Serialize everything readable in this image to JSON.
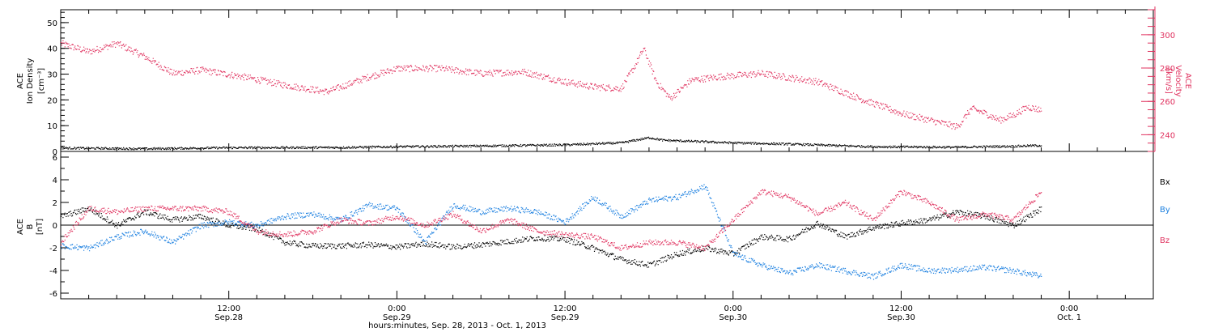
{
  "chart_data": [
    {
      "type": "scatter",
      "panel": "plasma",
      "ylabel_left": [
        "ACE",
        "Ion Density",
        "[cm⁻³]"
      ],
      "ylabel_right": [
        "ACE",
        "Velocity",
        "[km/s]"
      ],
      "ylim_left": [
        0,
        55
      ],
      "ylim_right": [
        230,
        315
      ],
      "left_ticks": [
        "0",
        "10",
        "20",
        "30",
        "40",
        "50"
      ],
      "right_ticks": [
        "240",
        "260",
        "280",
        "300"
      ],
      "colors": {
        "density": "#000000",
        "velocity": "#e0325f"
      },
      "series": [
        {
          "axis": "left",
          "hours": [
            0,
            6,
            12,
            20,
            24,
            30,
            36,
            40,
            42,
            43,
            48,
            52,
            58,
            64,
            68,
            70
          ],
          "values": [
            1.5,
            1.2,
            1.6,
            1.7,
            2.0,
            2.3,
            2.7,
            3.5,
            5.5,
            4.5,
            3.5,
            3.0,
            2.0,
            1.8,
            2.2,
            2.5
          ]
        },
        {
          "axis": "right",
          "hours": [
            0,
            2,
            4,
            6,
            8,
            10,
            13,
            16,
            19,
            22,
            24,
            27,
            30,
            33,
            36,
            38,
            40,
            41,
            41.6,
            42.5,
            43.5,
            45,
            47,
            50,
            54,
            57,
            60,
            62,
            64,
            65,
            66,
            67,
            68,
            69,
            70
          ],
          "values": [
            295,
            290,
            295,
            287,
            277,
            279,
            275,
            270,
            266,
            275,
            280,
            280,
            277,
            278,
            272,
            269,
            268,
            282,
            292,
            272,
            262,
            273,
            275,
            277,
            272,
            262,
            253,
            249,
            245,
            256,
            253,
            249,
            252,
            257,
            255
          ]
        }
      ]
    },
    {
      "type": "scatter",
      "panel": "magnetic-field",
      "ylabel_left": [
        "ACE",
        "B",
        "[nT]"
      ],
      "ylim": [
        -6.5,
        6.5
      ],
      "left_ticks": [
        "-6",
        "-4",
        "-2",
        "0",
        "2",
        "4",
        "6"
      ],
      "legend": [
        "Bx",
        "By",
        "Bz"
      ],
      "legend_placement": "right",
      "zero_line": true,
      "series": [
        {
          "name": "Bx",
          "color": "#000000",
          "hours": [
            0,
            2,
            4,
            6,
            8,
            10,
            12,
            14,
            16,
            18,
            20,
            22,
            24,
            26,
            28,
            30,
            32,
            34,
            36,
            38,
            40,
            42,
            44,
            46,
            48,
            50,
            52,
            54,
            56,
            58,
            60,
            62,
            64,
            66,
            68,
            70
          ],
          "values": [
            0.8,
            1.5,
            0.0,
            1.2,
            0.5,
            0.8,
            0.0,
            -0.3,
            -1.5,
            -1.8,
            -1.8,
            -1.7,
            -1.9,
            -1.6,
            -1.9,
            -1.7,
            -1.4,
            -1.1,
            -1.2,
            -2.0,
            -3.0,
            -3.5,
            -2.5,
            -2.0,
            -2.5,
            -1.0,
            -1.2,
            0.2,
            -1.0,
            -0.2,
            0.2,
            0.5,
            1.2,
            0.8,
            0.0,
            1.5
          ]
        },
        {
          "name": "By",
          "color": "#1a7fe0",
          "hours": [
            0,
            2,
            4,
            6,
            8,
            10,
            12,
            14,
            16,
            18,
            20,
            22,
            24,
            26,
            28,
            30,
            32,
            34,
            36,
            38,
            40,
            42,
            44,
            46,
            48,
            50,
            52,
            54,
            56,
            58,
            60,
            62,
            64,
            66,
            68,
            70
          ],
          "values": [
            -1.8,
            -2.0,
            -1.0,
            -0.5,
            -1.5,
            0.0,
            0.3,
            0.0,
            0.8,
            1.0,
            0.5,
            1.8,
            1.5,
            -1.5,
            1.8,
            1.2,
            1.5,
            1.2,
            0.3,
            2.5,
            0.8,
            2.2,
            2.5,
            3.5,
            -2.5,
            -3.5,
            -4.2,
            -3.5,
            -4.0,
            -4.5,
            -3.5,
            -4.0,
            -3.9,
            -3.7,
            -4.0,
            -4.5
          ]
        },
        {
          "name": "Bz",
          "color": "#e0325f",
          "hours": [
            0,
            2,
            4,
            6,
            8,
            10,
            12,
            14,
            16,
            18,
            20,
            22,
            24,
            26,
            28,
            30,
            32,
            34,
            36,
            38,
            40,
            42,
            44,
            46,
            48,
            50,
            52,
            54,
            56,
            58,
            60,
            62,
            64,
            66,
            68,
            70
          ],
          "values": [
            -1.5,
            1.5,
            1.2,
            1.5,
            1.5,
            1.5,
            1.2,
            -0.5,
            -0.8,
            -0.5,
            0.5,
            0.2,
            0.8,
            0.0,
            1.0,
            -0.5,
            0.5,
            -0.5,
            -0.8,
            -1.0,
            -2.0,
            -1.5,
            -1.5,
            -2.0,
            0.5,
            3.0,
            2.5,
            1.0,
            2.0,
            0.5,
            3.0,
            2.0,
            0.5,
            1.0,
            0.5,
            3.0
          ]
        }
      ]
    }
  ],
  "x_axis": {
    "xlabel": "hours:minutes, Sep. 28, 2013 - Oct.  1, 2013",
    "tick_hours": [
      12,
      24,
      36,
      48,
      60,
      72
    ],
    "tick_time": [
      "12:00",
      "0:00",
      "12:00",
      "0:00",
      "12:00",
      "0:00"
    ],
    "tick_date": [
      "Sep.28",
      "Sep.29",
      "Sep.29",
      "Sep.30",
      "Sep.30",
      "Oct. 1"
    ],
    "xlim_hours": [
      0,
      78
    ]
  }
}
